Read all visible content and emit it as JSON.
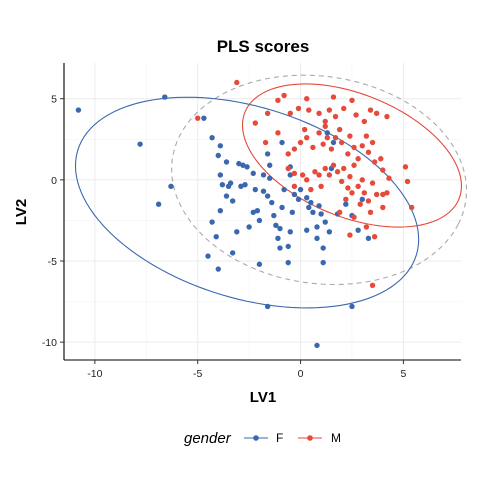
{
  "chart_data": {
    "type": "scatter",
    "title": "PLS scores",
    "xlabel": "LV1",
    "ylabel": "LV2",
    "xlim": [
      -11.5,
      7.8
    ],
    "ylim": [
      -11.1,
      7.2
    ],
    "x_ticks": [
      -10,
      -5,
      0,
      5
    ],
    "y_ticks": [
      5,
      0,
      -5,
      -10
    ],
    "grid": true,
    "legend": {
      "title": "gender",
      "position": "bottom"
    },
    "series": [
      {
        "name": "F",
        "color": "#3a68ae",
        "ellipse": {
          "cx": -2.6,
          "cy": -1.4,
          "rx": 8.9,
          "ry": 5.7,
          "angle_deg": -27
        },
        "points": [
          [
            -10.8,
            4.3
          ],
          [
            -7.8,
            2.2
          ],
          [
            -6.6,
            5.1
          ],
          [
            -6.3,
            -0.4
          ],
          [
            -6.9,
            -1.5
          ],
          [
            -4.7,
            3.8
          ],
          [
            -4.3,
            2.6
          ],
          [
            -4.0,
            1.5
          ],
          [
            -3.9,
            0.3
          ],
          [
            -3.8,
            -0.3
          ],
          [
            -3.5,
            -0.4
          ],
          [
            -3.6,
            -1.0
          ],
          [
            -3.9,
            -1.9
          ],
          [
            -4.3,
            -2.6
          ],
          [
            -4.1,
            -3.5
          ],
          [
            -4.5,
            -4.7
          ],
          [
            -4.0,
            -5.5
          ],
          [
            -3.9,
            2.1
          ],
          [
            -3.6,
            1.1
          ],
          [
            -3.4,
            -0.2
          ],
          [
            -3.3,
            -1.3
          ],
          [
            -3.3,
            -4.5
          ],
          [
            -3.1,
            -3.2
          ],
          [
            -2.9,
            -0.4
          ],
          [
            -2.7,
            -0.3
          ],
          [
            -2.6,
            0.8
          ],
          [
            -2.3,
            0.4
          ],
          [
            -2.2,
            -0.6
          ],
          [
            -2.1,
            -1.9
          ],
          [
            -2.0,
            -2.5
          ],
          [
            -1.8,
            -0.7
          ],
          [
            -1.6,
            -1.0
          ],
          [
            -1.5,
            0.1
          ],
          [
            -1.4,
            -1.4
          ],
          [
            -2.0,
            -5.2
          ],
          [
            -2.5,
            -2.9
          ],
          [
            -2.3,
            -2.0
          ],
          [
            -1.3,
            -2.2
          ],
          [
            -1.2,
            -2.8
          ],
          [
            -1.1,
            -3.6
          ],
          [
            -1.0,
            -3.0
          ],
          [
            -0.9,
            -1.7
          ],
          [
            -0.8,
            -0.6
          ],
          [
            -0.5,
            0.3
          ],
          [
            -0.3,
            -0.9
          ],
          [
            -0.1,
            -1.2
          ],
          [
            -0.4,
            -2.0
          ],
          [
            -0.5,
            -3.2
          ],
          [
            -1.0,
            -4.2
          ],
          [
            -0.6,
            -4.1
          ],
          [
            -0.6,
            -5.1
          ],
          [
            -1.6,
            1.6
          ],
          [
            -1.5,
            0.9
          ],
          [
            -0.9,
            2.3
          ],
          [
            -0.5,
            0.8
          ],
          [
            0.0,
            -0.6
          ],
          [
            0.3,
            -1.1
          ],
          [
            0.5,
            -1.4
          ],
          [
            0.4,
            -1.7
          ],
          [
            0.6,
            -2.0
          ],
          [
            0.9,
            -1.6
          ],
          [
            1.0,
            -2.1
          ],
          [
            1.2,
            -2.6
          ],
          [
            0.8,
            -2.9
          ],
          [
            0.3,
            -3.1
          ],
          [
            0.8,
            -3.6
          ],
          [
            1.1,
            -4.2
          ],
          [
            1.1,
            -5.1
          ],
          [
            1.4,
            -3.2
          ],
          [
            1.6,
            2.3
          ],
          [
            1.5,
            0.7
          ],
          [
            1.8,
            -2.1
          ],
          [
            2.2,
            -1.5
          ],
          [
            2.5,
            -2.2
          ],
          [
            2.8,
            -3.1
          ],
          [
            3.0,
            -1.2
          ],
          [
            3.3,
            -3.6
          ],
          [
            1.3,
            2.9
          ],
          [
            -1.6,
            -7.8
          ],
          [
            2.5,
            -7.8
          ],
          [
            0.8,
            -10.2
          ],
          [
            -3.0,
            1.0
          ],
          [
            -1.8,
            0.3
          ],
          [
            -2.8,
            0.9
          ]
        ]
      },
      {
        "name": "M",
        "color": "#e64a3b",
        "ellipse": {
          "cx": 2.5,
          "cy": 1.5,
          "rx": 5.9,
          "ry": 3.6,
          "angle_deg": -33
        },
        "points": [
          [
            -3.1,
            6.0
          ],
          [
            -5.0,
            3.8
          ],
          [
            -2.2,
            3.5
          ],
          [
            -1.6,
            4.1
          ],
          [
            -1.1,
            4.9
          ],
          [
            -0.8,
            5.2
          ],
          [
            -0.5,
            4.1
          ],
          [
            -0.1,
            4.4
          ],
          [
            0.2,
            3.1
          ],
          [
            0.3,
            5.0
          ],
          [
            0.4,
            4.3
          ],
          [
            0.9,
            4.1
          ],
          [
            1.2,
            3.3
          ],
          [
            1.4,
            4.3
          ],
          [
            1.6,
            5.1
          ],
          [
            1.7,
            3.9
          ],
          [
            2.1,
            4.4
          ],
          [
            2.5,
            4.9
          ],
          [
            2.7,
            4.0
          ],
          [
            3.1,
            3.6
          ],
          [
            3.4,
            4.3
          ],
          [
            3.7,
            4.1
          ],
          [
            4.2,
            3.9
          ],
          [
            -1.7,
            2.3
          ],
          [
            -1.1,
            2.9
          ],
          [
            -0.6,
            1.6
          ],
          [
            -0.3,
            1.9
          ],
          [
            0.0,
            2.3
          ],
          [
            0.3,
            2.6
          ],
          [
            0.6,
            2.0
          ],
          [
            0.9,
            2.9
          ],
          [
            1.1,
            2.2
          ],
          [
            1.3,
            2.6
          ],
          [
            1.5,
            1.9
          ],
          [
            1.7,
            2.6
          ],
          [
            1.9,
            3.1
          ],
          [
            2.0,
            2.3
          ],
          [
            2.3,
            1.6
          ],
          [
            2.4,
            2.7
          ],
          [
            2.6,
            2.0
          ],
          [
            2.8,
            1.3
          ],
          [
            3.0,
            2.1
          ],
          [
            3.2,
            2.7
          ],
          [
            3.3,
            1.7
          ],
          [
            3.5,
            2.3
          ],
          [
            3.6,
            1.1
          ],
          [
            3.9,
            1.3
          ],
          [
            4.0,
            0.6
          ],
          [
            4.3,
            0.1
          ],
          [
            5.1,
            0.8
          ],
          [
            -0.6,
            0.7
          ],
          [
            -0.3,
            0.4
          ],
          [
            0.1,
            0.3
          ],
          [
            0.3,
            0.0
          ],
          [
            0.7,
            0.5
          ],
          [
            0.9,
            0.3
          ],
          [
            1.0,
            -0.4
          ],
          [
            1.2,
            0.7
          ],
          [
            1.4,
            0.3
          ],
          [
            1.6,
            0.9
          ],
          [
            1.8,
            0.5
          ],
          [
            2.0,
            -0.1
          ],
          [
            2.1,
            0.7
          ],
          [
            2.3,
            -0.5
          ],
          [
            2.4,
            0.2
          ],
          [
            2.5,
            -0.8
          ],
          [
            2.6,
            0.9
          ],
          [
            2.8,
            -0.4
          ],
          [
            3.0,
            0.0
          ],
          [
            3.1,
            -0.8
          ],
          [
            3.3,
            -1.3
          ],
          [
            3.5,
            -0.2
          ],
          [
            3.7,
            -0.9
          ],
          [
            4.0,
            -0.9
          ],
          [
            4.2,
            -0.8
          ],
          [
            5.2,
            -0.1
          ],
          [
            5.4,
            -1.7
          ],
          [
            2.2,
            -1.2
          ],
          [
            2.9,
            -1.5
          ],
          [
            3.4,
            -2.0
          ],
          [
            2.6,
            -2.3
          ],
          [
            3.2,
            -2.9
          ],
          [
            4.0,
            -1.7
          ],
          [
            3.6,
            -3.5
          ],
          [
            2.4,
            -3.4
          ],
          [
            1.9,
            -2.0
          ],
          [
            3.5,
            -6.5
          ],
          [
            -0.3,
            -0.4
          ],
          [
            0.5,
            -0.6
          ],
          [
            1.2,
            3.6
          ]
        ]
      }
    ],
    "overall_ellipse": {
      "cx": 0.9,
      "cy": 0.0,
      "rx": 7.3,
      "ry": 6.3,
      "angle_deg": -22,
      "color": "#aaaaaa",
      "dashed": true
    }
  },
  "legend": {
    "title": "gender",
    "items": [
      "F",
      "M"
    ]
  }
}
